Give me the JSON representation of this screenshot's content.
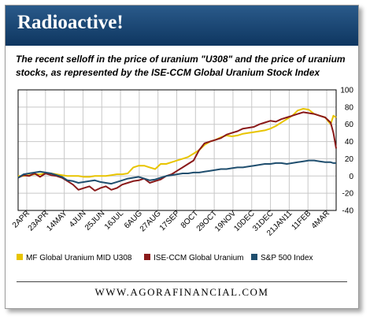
{
  "header": {
    "title": "Radioactive!",
    "subtitle": "The recent selloff in the price of uranium \"U308\" and the price of uranium stocks, as represented by the ISE-CCM Global Uranium Stock Index"
  },
  "footer": {
    "url": "WWW.AGORAFINANCIAL.COM"
  },
  "colors": {
    "banner": "#1b4775",
    "mf": "#e8c400",
    "ise": "#8a1a1a",
    "sp": "#1f4e6e"
  },
  "chart_data": {
    "type": "line",
    "title": "",
    "xlabel": "",
    "ylabel": "",
    "ylim": [
      -40,
      100
    ],
    "yticks": [
      "100",
      "80",
      "60",
      "40",
      "20",
      "0",
      "-20",
      "-40"
    ],
    "xtick_labels": [
      "2APR",
      "23APR",
      "14MAY",
      "4JUN",
      "25JUN",
      "16JUL",
      "6AUG",
      "27AUG",
      "17SEP",
      "8OCT",
      "29OCT",
      "19NOV",
      "10DEC",
      "31DEC",
      "21JAN11",
      "11FEB",
      "4MAR"
    ],
    "grid": true,
    "legend_position": "bottom",
    "x": [
      0,
      6,
      12,
      18,
      24,
      30,
      36,
      42,
      48,
      54,
      60,
      66,
      72,
      78,
      84,
      90,
      96,
      102,
      108,
      114,
      120,
      126,
      132,
      138,
      144,
      150,
      156,
      162,
      168,
      174,
      180,
      186,
      192,
      198,
      204,
      210,
      216,
      222,
      228,
      234,
      240,
      246,
      252,
      258,
      264,
      270,
      276,
      282,
      288,
      294,
      300,
      306,
      312,
      318,
      324,
      330,
      336,
      342,
      345,
      348
    ],
    "series": [
      {
        "name": "MF Global Uranium MID U308",
        "values": [
          0,
          0,
          1,
          2,
          2,
          3,
          3,
          2,
          1,
          0,
          0,
          0,
          -1,
          -1,
          0,
          0,
          0,
          1,
          2,
          2,
          3,
          10,
          12,
          12,
          10,
          8,
          14,
          14,
          16,
          18,
          20,
          22,
          26,
          30,
          36,
          40,
          42,
          45,
          47,
          46,
          47,
          49,
          50,
          51,
          52,
          53,
          55,
          58,
          62,
          66,
          70,
          76,
          78,
          77,
          72,
          70,
          68,
          60,
          70,
          68
        ]
      },
      {
        "name": "ISE-CCM Global Uranium",
        "values": [
          -2,
          1,
          0,
          3,
          -1,
          3,
          1,
          0,
          -2,
          -6,
          -10,
          -16,
          -14,
          -12,
          -17,
          -14,
          -12,
          -16,
          -14,
          -10,
          -8,
          -6,
          -5,
          -3,
          -8,
          -6,
          -4,
          0,
          2,
          6,
          10,
          14,
          18,
          30,
          38,
          40,
          42,
          44,
          48,
          50,
          52,
          55,
          56,
          57,
          60,
          62,
          64,
          63,
          66,
          68,
          70,
          72,
          74,
          73,
          72,
          70,
          68,
          62,
          50,
          32
        ]
      },
      {
        "name": "S&P 500 Index",
        "values": [
          -2,
          2,
          3,
          4,
          5,
          4,
          3,
          1,
          -1,
          -5,
          -6,
          -8,
          -7,
          -6,
          -5,
          -7,
          -8,
          -9,
          -7,
          -5,
          -3,
          -2,
          -1,
          -3,
          -5,
          -4,
          -2,
          0,
          1,
          2,
          3,
          3,
          4,
          4,
          5,
          6,
          7,
          8,
          8,
          9,
          10,
          10,
          11,
          12,
          13,
          14,
          14,
          15,
          15,
          14,
          15,
          16,
          17,
          18,
          18,
          17,
          16,
          16,
          15,
          15
        ]
      }
    ]
  }
}
